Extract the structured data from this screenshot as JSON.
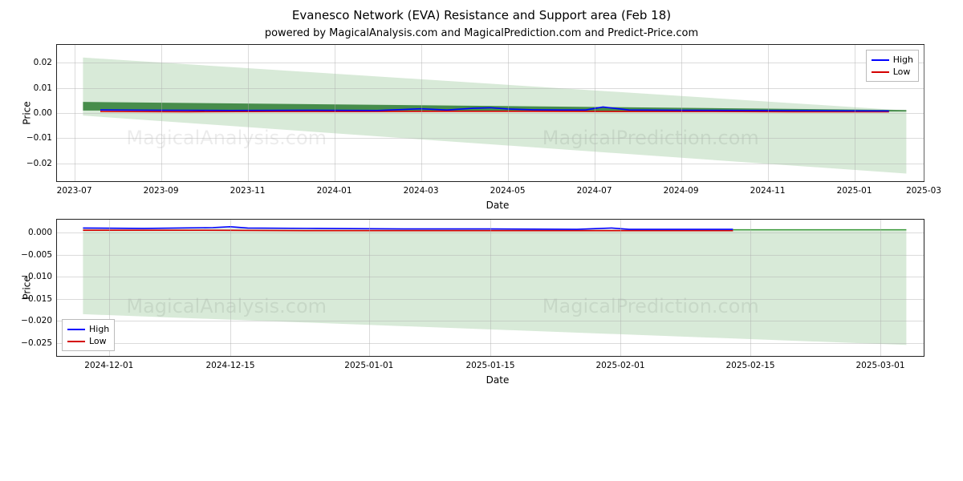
{
  "title": "Evanesco Network (EVA) Resistance and Support area (Feb 18)",
  "subtitle": "powered by MagicalAnalysis.com and MagicalPrediction.com and Predict-Price.com",
  "watermarks": {
    "top": [
      "MagicalAnalysis.com",
      "MagicalPrediction.com"
    ],
    "bottom": [
      "MagicalAnalysis.com",
      "MagicalPrediction.com"
    ]
  },
  "legend": {
    "high": {
      "label": "High",
      "color": "#0000ff"
    },
    "low": {
      "label": "Low",
      "color": "#d40000"
    }
  },
  "chart1": {
    "type": "line-fill",
    "xlabel": "Date",
    "ylabel": "Price",
    "background": "#ffffff",
    "grid_color": "#b0b0b0",
    "area_color": "#d4e8d4",
    "ylim": [
      -0.027,
      0.027
    ],
    "yticks": [
      -0.02,
      -0.01,
      0.0,
      0.01,
      0.02
    ],
    "ytick_labels": [
      "−0.02",
      "−0.01",
      "0.00",
      "0.01",
      "0.02"
    ],
    "x_domain": [
      0,
      100
    ],
    "xticks": [
      2,
      12,
      22,
      32,
      42,
      52,
      62,
      72,
      82,
      92,
      100
    ],
    "xtick_labels": [
      "2023-07",
      "2023-09",
      "2023-11",
      "2024-01",
      "2024-03",
      "2024-05",
      "2024-07",
      "2024-09",
      "2024-11",
      "2025-01",
      "2025-03"
    ],
    "area_poly": [
      [
        3,
        0.022
      ],
      [
        98,
        0.001
      ],
      [
        98,
        -0.024
      ],
      [
        3,
        -0.001
      ]
    ],
    "dark_green_poly": [
      [
        3,
        0.0044
      ],
      [
        98,
        0.0012
      ],
      [
        98,
        0.0006
      ],
      [
        3,
        0.001
      ]
    ],
    "dark_green_color": "#2e7d32",
    "high_line": [
      [
        5,
        0.0012
      ],
      [
        12,
        0.0011
      ],
      [
        20,
        0.001
      ],
      [
        30,
        0.0011
      ],
      [
        37,
        0.001
      ],
      [
        42,
        0.0017
      ],
      [
        45,
        0.0012
      ],
      [
        48,
        0.0019
      ],
      [
        50,
        0.0021
      ],
      [
        52,
        0.0016
      ],
      [
        55,
        0.0013
      ],
      [
        58,
        0.0012
      ],
      [
        61,
        0.0012
      ],
      [
        63,
        0.0024
      ],
      [
        66,
        0.0012
      ],
      [
        72,
        0.0011
      ],
      [
        80,
        0.001
      ],
      [
        88,
        0.0009
      ],
      [
        96,
        0.0008
      ]
    ],
    "low_line": [
      [
        5,
        0.0006
      ],
      [
        15,
        0.0005
      ],
      [
        25,
        0.0006
      ],
      [
        35,
        0.0006
      ],
      [
        45,
        0.0007
      ],
      [
        55,
        0.0007
      ],
      [
        65,
        0.0006
      ],
      [
        75,
        0.0006
      ],
      [
        85,
        0.0005
      ],
      [
        96,
        0.0005
      ]
    ],
    "line_width": 1.6,
    "legend_pos": "top-right",
    "label_fontsize": 12,
    "tick_fontsize": 10.5
  },
  "chart2": {
    "type": "line-fill",
    "xlabel": "Date",
    "ylabel": "Price",
    "background": "#ffffff",
    "grid_color": "#b0b0b0",
    "area_color": "#d4e8d4",
    "ylim": [
      -0.028,
      0.003
    ],
    "yticks": [
      -0.025,
      -0.02,
      -0.015,
      -0.01,
      -0.005,
      0.0
    ],
    "ytick_labels": [
      "−0.025",
      "−0.020",
      "−0.015",
      "−0.010",
      "−0.005",
      "0.000"
    ],
    "x_domain": [
      0,
      100
    ],
    "xticks": [
      6,
      20,
      36,
      50,
      65,
      80,
      95
    ],
    "xtick_labels": [
      "2024-12-01",
      "2024-12-15",
      "2025-01-01",
      "2025-01-15",
      "2025-02-01",
      "2025-02-15",
      "2025-03-01"
    ],
    "area_poly": [
      [
        3,
        0.0012
      ],
      [
        98,
        0.0006
      ],
      [
        98,
        -0.0255
      ],
      [
        3,
        -0.0185
      ]
    ],
    "high_line": [
      [
        3,
        0.0011
      ],
      [
        10,
        0.001
      ],
      [
        18,
        0.0012
      ],
      [
        20,
        0.0014
      ],
      [
        22,
        0.0011
      ],
      [
        30,
        0.001
      ],
      [
        40,
        0.0009
      ],
      [
        50,
        0.0009
      ],
      [
        60,
        0.0008
      ],
      [
        64,
        0.0011
      ],
      [
        66,
        0.0008
      ],
      [
        74,
        0.0008
      ],
      [
        78,
        0.0008
      ]
    ],
    "low_line": [
      [
        3,
        0.0006
      ],
      [
        15,
        0.0006
      ],
      [
        30,
        0.0005
      ],
      [
        45,
        0.0005
      ],
      [
        60,
        0.0005
      ],
      [
        74,
        0.0005
      ],
      [
        78,
        0.0005
      ]
    ],
    "green_ext": [
      [
        78,
        0.0007
      ],
      [
        98,
        0.0007
      ]
    ],
    "green_ext_color": "#3a9a3a",
    "line_width": 1.6,
    "legend_pos": "bottom-left",
    "label_fontsize": 12,
    "tick_fontsize": 10.5
  }
}
